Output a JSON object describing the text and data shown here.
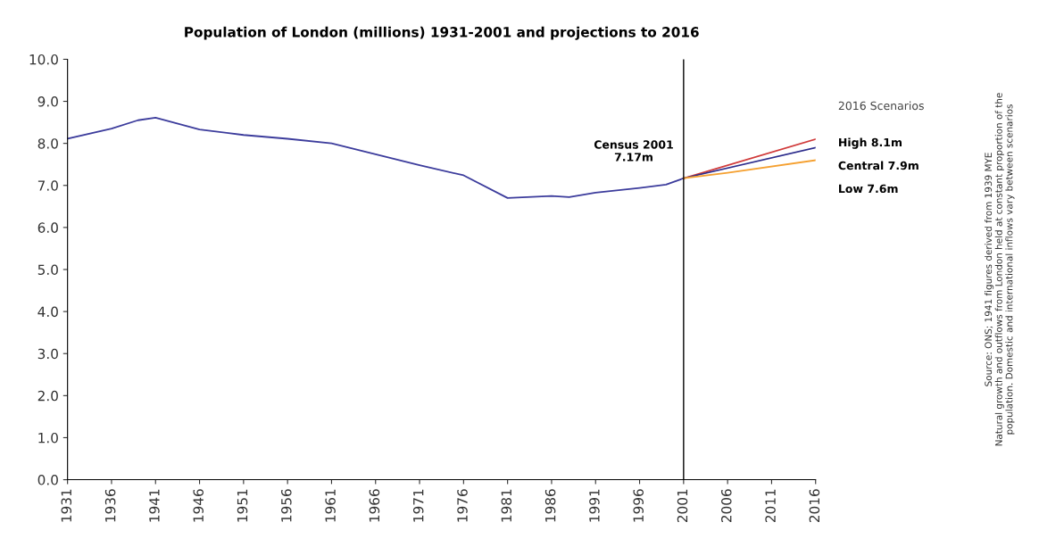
{
  "chart_data": {
    "type": "line",
    "title": "Population of London (millions) 1931-2001 and projections to 2016",
    "xlim": [
      1931,
      2016
    ],
    "xticks": [
      1931,
      1936,
      1941,
      1946,
      1951,
      1956,
      1961,
      1966,
      1971,
      1976,
      1981,
      1986,
      1991,
      1996,
      2001,
      2006,
      2011,
      2016
    ],
    "ylim": [
      0,
      10
    ],
    "yticks": [
      {
        "value": 0,
        "label": "0.0"
      },
      {
        "value": 1,
        "label": "1.0"
      },
      {
        "value": 2,
        "label": "2.0"
      },
      {
        "value": 3,
        "label": "3.0"
      },
      {
        "value": 4,
        "label": "4.0"
      },
      {
        "value": 5,
        "label": "5.0"
      },
      {
        "value": 6,
        "label": "6.0"
      },
      {
        "value": 7,
        "label": "7.0"
      },
      {
        "value": 8,
        "label": "8.0"
      },
      {
        "value": 9,
        "label": "9.0"
      },
      {
        "value": 10,
        "label": "10.0"
      }
    ],
    "grid": false,
    "legend_title": "2016 Scenarios",
    "series": [
      {
        "color": "#3c3c9c",
        "x": [
          1931,
          1936,
          1939,
          1941,
          1946,
          1951,
          1956,
          1961,
          1966,
          1971,
          1976,
          1981,
          1986,
          1988,
          1991,
          1996,
          1999,
          2001
        ],
        "values": [
          8.11,
          8.35,
          8.55,
          8.61,
          8.33,
          8.2,
          8.11,
          8.0,
          7.74,
          7.48,
          7.24,
          6.7,
          6.75,
          6.72,
          6.83,
          6.94,
          7.02,
          7.17
        ]
      },
      {
        "name": "High 8.1m",
        "color": "#d03a3a",
        "x": [
          2001,
          2016
        ],
        "values": [
          7.17,
          8.1
        ]
      },
      {
        "name": "Central 7.9m",
        "color": "#2c2c8c",
        "x": [
          2001,
          2016
        ],
        "values": [
          7.17,
          7.9
        ]
      },
      {
        "name": "Low 7.6m",
        "color": "#f5a030",
        "x": [
          2001,
          2006,
          2016
        ],
        "values": [
          7.17,
          7.3,
          7.6
        ]
      }
    ],
    "ref_lines": [
      {
        "axis": "x",
        "value": 2001,
        "color": "#000000"
      }
    ],
    "annotations": [
      {
        "text": "Census 2001\n7.17m",
        "x": 2001,
        "y": 7.17
      },
      "Source: ONS; 1941 figures derived from 1939 MYE\nNatural growth and outflows from London held at constant proportion of the\npopulation. Domestic and international inflows vary between scenarios"
    ]
  }
}
